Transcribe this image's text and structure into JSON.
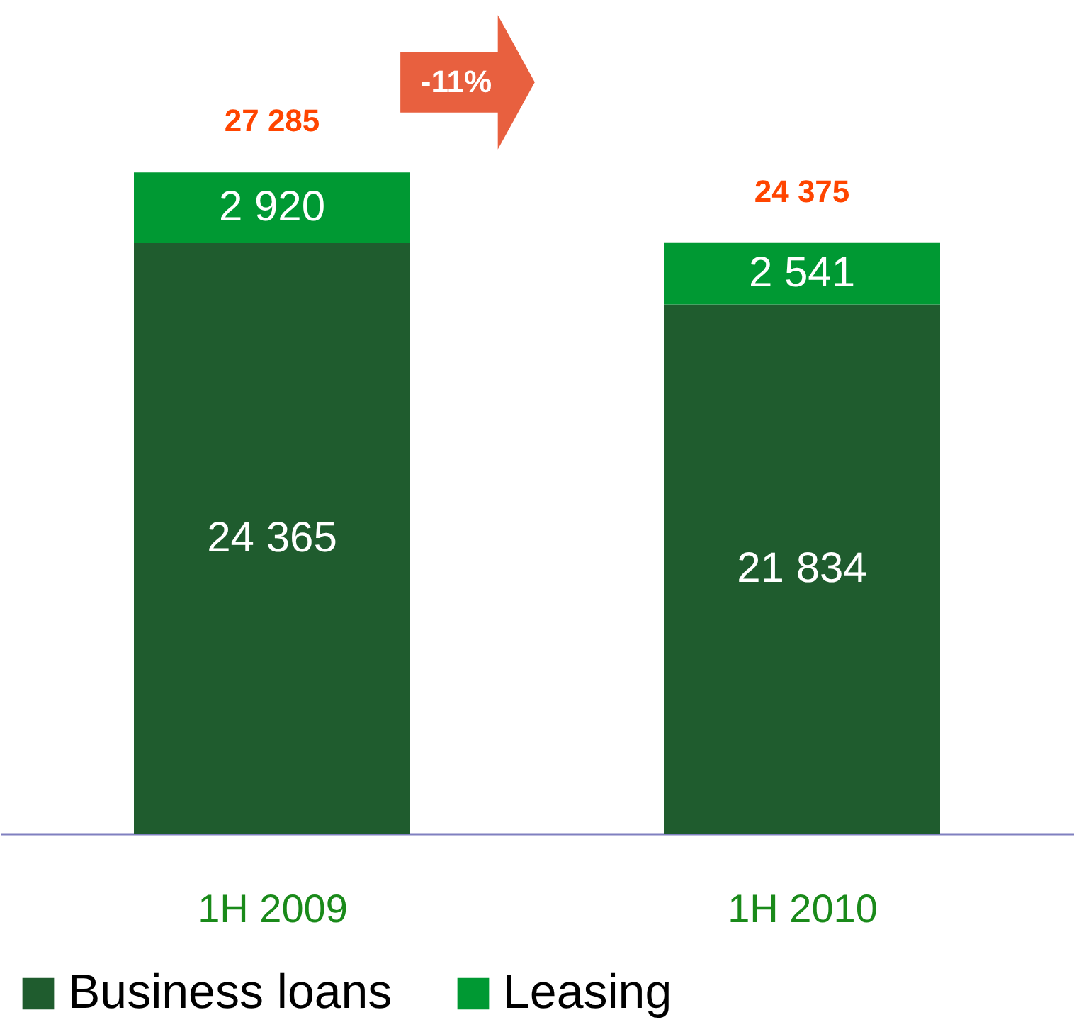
{
  "chart_data": {
    "type": "bar",
    "stacked": true,
    "categories": [
      "1H 2009",
      "1H 2010"
    ],
    "series": [
      {
        "name": "Business loans",
        "color": "#1f5c2e",
        "values": [
          24365,
          21834
        ],
        "value_labels": [
          "24 365",
          "21 834"
        ]
      },
      {
        "name": "Leasing",
        "color": "#009933",
        "values": [
          2920,
          2541
        ],
        "value_labels": [
          "2 920",
          "2 541"
        ]
      }
    ],
    "totals": [
      "27 285",
      "24 375"
    ],
    "annotations": [
      "-11%"
    ],
    "ylim": [
      0,
      34400
    ],
    "tick_labels": "x",
    "grid": false,
    "legend": "bottom"
  }
}
